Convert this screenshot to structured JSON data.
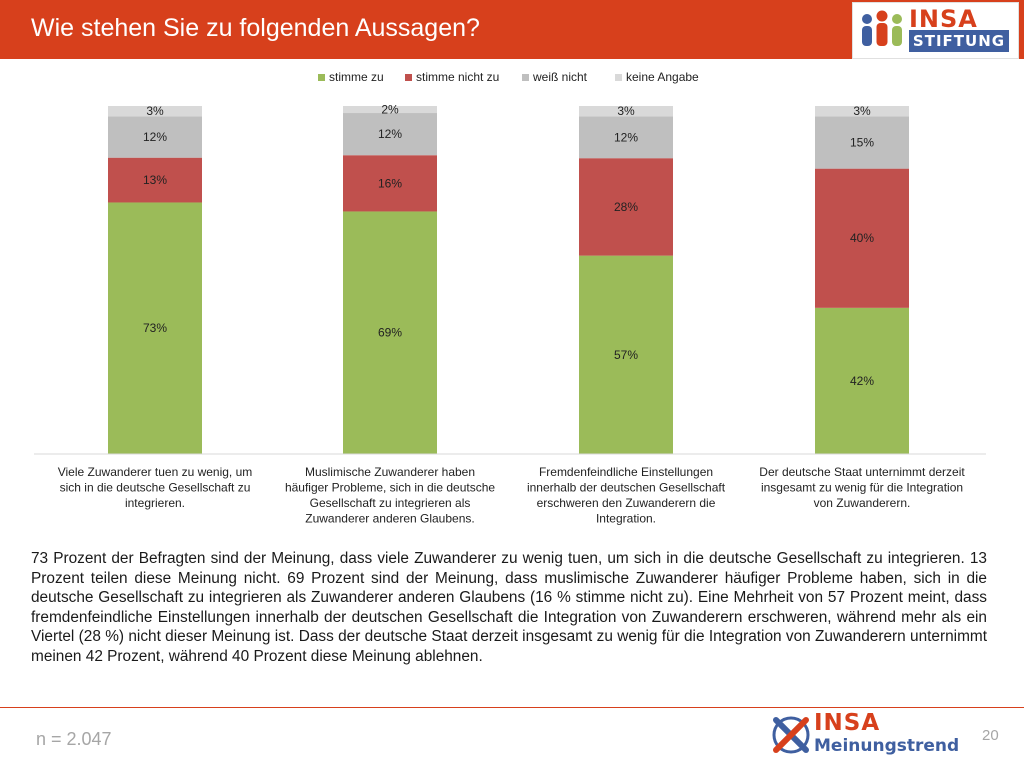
{
  "header": {
    "title": "Wie stehen Sie zu folgenden Aussagen?",
    "logo_word": "INSA",
    "logo_sub": "STIFTUNG"
  },
  "colors": {
    "header_bg": "#d7401c",
    "agree": "#9bbb59",
    "disagree": "#c0504d",
    "dont_know": "#bfbfbf",
    "no_answer": "#d9d9d9"
  },
  "chart_data": {
    "type": "bar",
    "stacked": true,
    "grid": false,
    "legend_position": "top",
    "ylim": [
      0,
      100
    ],
    "categories": [
      "Viele Zuwanderer tuen zu wenig, um sich in die deutsche Gesellschaft zu integrieren.",
      "Muslimische Zuwanderer haben häufiger Probleme, sich in die deutsche Gesellschaft zu integrieren als Zuwanderer anderen Glaubens.",
      "Fremdenfeindliche Einstellungen innerhalb der deutschen Gesellschaft erschweren den Zuwanderern die Integration.",
      "Der deutsche Staat unternimmt derzeit insgesamt zu wenig für die Integration von Zuwanderern."
    ],
    "category_lines": [
      [
        "Viele Zuwanderer tuen zu wenig, um",
        "sich in die deutsche Gesellschaft zu",
        "integrieren."
      ],
      [
        "Muslimische Zuwanderer haben",
        "häufiger Probleme, sich in die deutsche",
        "Gesellschaft zu integrieren als",
        "Zuwanderer anderen Glaubens."
      ],
      [
        "Fremdenfeindliche Einstellungen",
        "innerhalb der deutschen Gesellschaft",
        "erschweren den Zuwanderern die",
        "Integration."
      ],
      [
        "Der deutsche Staat unternimmt derzeit",
        "insgesamt zu wenig für die Integration",
        "von Zuwanderern."
      ]
    ],
    "series": [
      {
        "name": "stimme zu",
        "color": "#9bbb59",
        "values": [
          73,
          69,
          57,
          42
        ]
      },
      {
        "name": "stimme nicht zu",
        "color": "#c0504d",
        "values": [
          13,
          16,
          28,
          40
        ]
      },
      {
        "name": "weiß nicht",
        "color": "#bfbfbf",
        "values": [
          12,
          12,
          12,
          15
        ]
      },
      {
        "name": "keine Angabe",
        "color": "#d9d9d9",
        "values": [
          3,
          2,
          3,
          3
        ]
      }
    ],
    "value_suffix": "%"
  },
  "summary": "73 Prozent der Befragten sind der Meinung, dass viele Zuwanderer zu wenig tuen, um sich in die deutsche Gesellschaft zu integrieren. 13 Prozent teilen diese Meinung nicht. 69 Prozent sind der Meinung, dass muslimische Zuwanderer häufiger Probleme haben, sich in die deutsche Gesellschaft zu integrieren als Zuwanderer anderen Glaubens (16 % stimme nicht zu). Eine Mehrheit von 57 Prozent meint, dass fremdenfeindliche Einstellungen innerhalb der deutschen Gesellschaft die Integration von Zuwanderern erschweren, während mehr als ein Viertel (28 %) nicht dieser Meinung ist. Dass der deutsche Staat derzeit insgesamt zu wenig für die Integration von Zuwanderern unternimmt meinen 42 Prozent, während 40 Prozent diese Meinung ablehnen.",
  "footer": {
    "sample_size": "n = 2.047",
    "page_number": "20",
    "logo_word": "INSA",
    "logo_sub": "Meinungstrend"
  }
}
